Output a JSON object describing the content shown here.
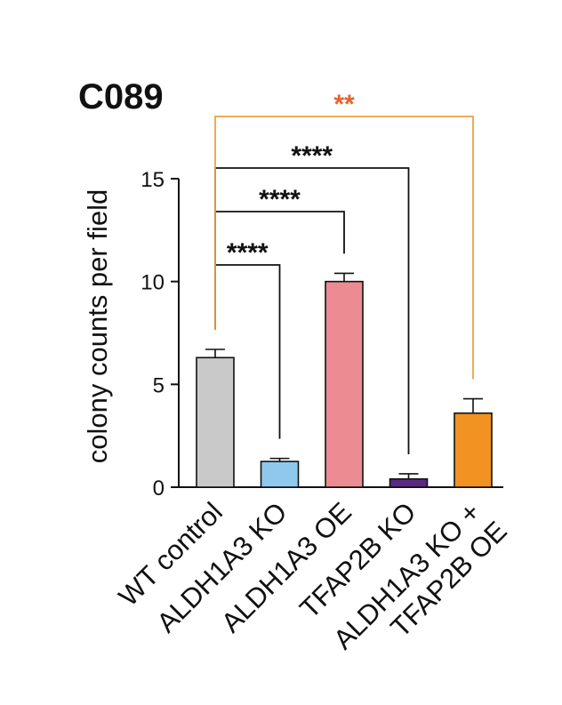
{
  "chart_data": {
    "type": "bar",
    "title": "C089",
    "ylabel": "colony counts per field",
    "xlabel": "",
    "ylim": [
      0,
      15
    ],
    "yticks": [
      0,
      5,
      10,
      15
    ],
    "grid": false,
    "categories": [
      [
        "WT control"
      ],
      [
        "ALDH1A3 KO"
      ],
      [
        "ALDH1A3 OE"
      ],
      [
        "TFAP2B KO"
      ],
      [
        "ALDH1A3 KO +",
        "TFAP2B OE"
      ]
    ],
    "values": [
      6.3,
      1.25,
      10.0,
      0.4,
      3.6
    ],
    "errors": [
      0.4,
      0.15,
      0.4,
      0.25,
      0.7
    ],
    "colors": [
      "#c9c9c9",
      "#8fc8ed",
      "#ec8b92",
      "#5a2a82",
      "#f29222"
    ],
    "comparisons": [
      {
        "from": 0,
        "to": 1,
        "label": "****",
        "color": "#111111"
      },
      {
        "from": 0,
        "to": 2,
        "label": "****",
        "color": "#111111"
      },
      {
        "from": 0,
        "to": 3,
        "label": "****",
        "color": "#111111"
      },
      {
        "from": 0,
        "to": 4,
        "label": "**",
        "color": "#e8622a",
        "line_color": "#f0a040"
      }
    ]
  }
}
